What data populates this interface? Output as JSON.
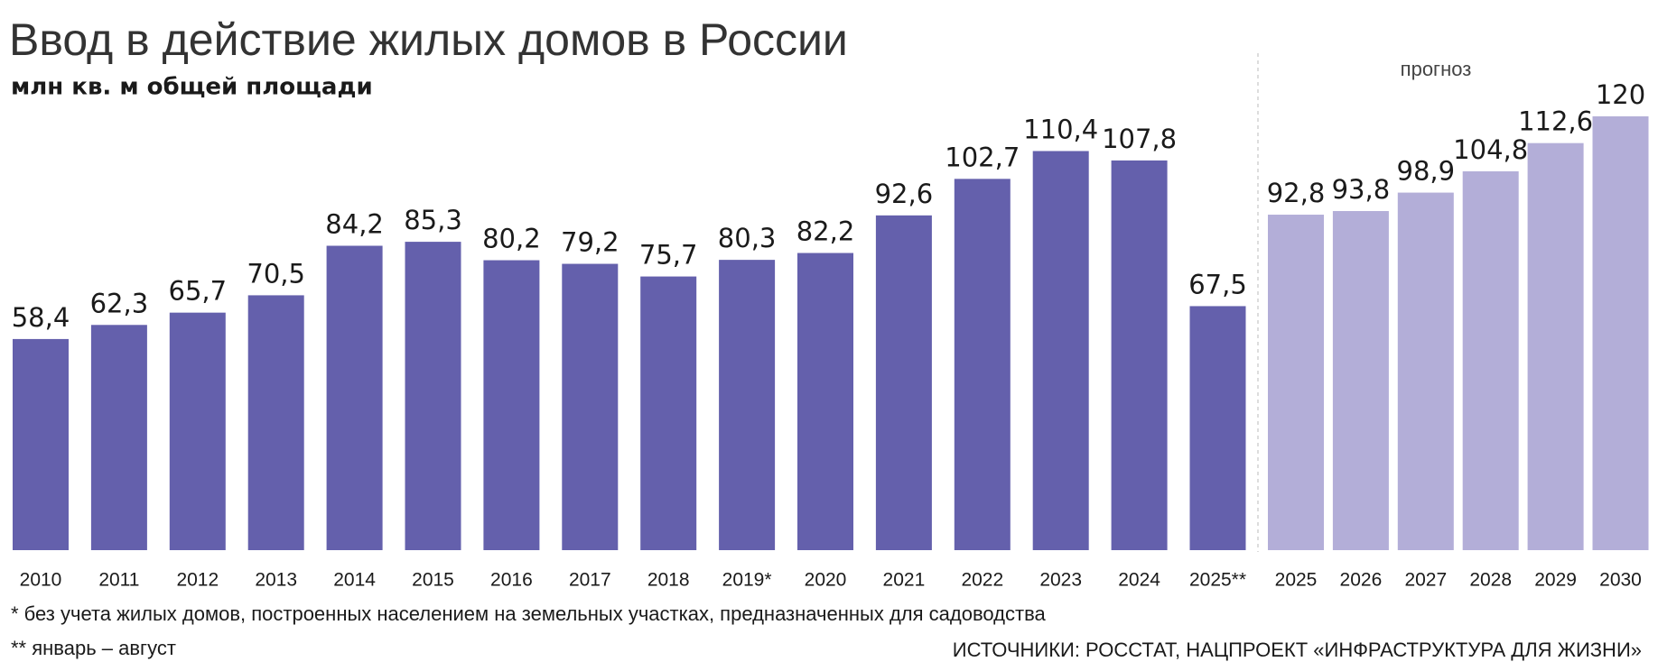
{
  "chart_data": {
    "type": "bar",
    "title": "Ввод в действие жилых домов в России",
    "subtitle": "млн кв. м общей площади",
    "categories": [
      "2010",
      "2011",
      "2012",
      "2013",
      "2014",
      "2015",
      "2016",
      "2017",
      "2018",
      "2019*",
      "2020",
      "2021",
      "2022",
      "2023",
      "2024",
      "2025**",
      "2025",
      "2026",
      "2027",
      "2028",
      "2029",
      "2030"
    ],
    "series": [
      {
        "color": "#6460ac",
        "values": [
          58.4,
          62.3,
          65.7,
          70.5,
          84.2,
          85.3,
          80.2,
          79.2,
          75.7,
          80.3,
          82.2,
          92.6,
          102.7,
          110.4,
          107.8,
          67.5,
          null,
          null,
          null,
          null,
          null,
          null
        ],
        "value_labels": [
          "58,4",
          "62,3",
          "65,7",
          "70,5",
          "84,2",
          "85,3",
          "80,2",
          "79,2",
          "75,7",
          "80,3",
          "82,2",
          "92,6",
          "102,7",
          "110,4",
          "107,8",
          "67,5",
          null,
          null,
          null,
          null,
          null,
          null
        ]
      },
      {
        "name": "прогноз",
        "color": "#b3aed8",
        "values": [
          null,
          null,
          null,
          null,
          null,
          null,
          null,
          null,
          null,
          null,
          null,
          null,
          null,
          null,
          null,
          null,
          92.8,
          93.8,
          98.9,
          104.8,
          112.6,
          120
        ],
        "value_labels": [
          null,
          null,
          null,
          null,
          null,
          null,
          null,
          null,
          null,
          null,
          null,
          null,
          null,
          null,
          null,
          null,
          "92,8",
          "93,8",
          "98,9",
          "104,8",
          "112,6",
          null
        ]
      }
    ],
    "ylim": [
      0,
      120
    ],
    "footnotes": [
      "* без учета жилых домов, построенных населением на земельных участках, предназначенных для садоводства",
      "** январь – август"
    ],
    "source": "ИСТОЧНИКИ: РОССТАТ, НАЦПРОЕКТ «ИНФРАСТРУКТУРА ДЛЯ ЖИЗНИ»"
  }
}
